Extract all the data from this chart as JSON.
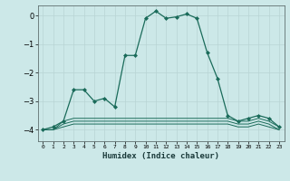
{
  "xlabel": "Humidex (Indice chaleur)",
  "x": [
    0,
    1,
    2,
    3,
    4,
    5,
    6,
    7,
    8,
    9,
    10,
    11,
    12,
    13,
    14,
    15,
    16,
    17,
    18,
    19,
    20,
    21,
    22,
    23
  ],
  "y_main": [
    -4.0,
    -3.9,
    -3.7,
    -2.6,
    -2.6,
    -3.0,
    -2.9,
    -3.2,
    -1.4,
    -1.4,
    -0.1,
    0.15,
    -0.1,
    -0.05,
    0.05,
    -0.1,
    -1.3,
    -2.2,
    -3.5,
    -3.7,
    -3.6,
    -3.5,
    -3.6,
    -3.9
  ],
  "y_flat1": [
    -4.0,
    -4.0,
    -3.7,
    -3.6,
    -3.6,
    -3.6,
    -3.6,
    -3.6,
    -3.6,
    -3.6,
    -3.6,
    -3.6,
    -3.6,
    -3.6,
    -3.6,
    -3.6,
    -3.6,
    -3.6,
    -3.6,
    -3.7,
    -3.7,
    -3.6,
    -3.7,
    -3.9
  ],
  "y_flat2": [
    -4.0,
    -4.0,
    -3.8,
    -3.7,
    -3.7,
    -3.7,
    -3.7,
    -3.7,
    -3.7,
    -3.7,
    -3.7,
    -3.7,
    -3.7,
    -3.7,
    -3.7,
    -3.7,
    -3.7,
    -3.7,
    -3.7,
    -3.8,
    -3.8,
    -3.7,
    -3.8,
    -4.0
  ],
  "y_flat3": [
    -4.0,
    -4.0,
    -3.9,
    -3.8,
    -3.8,
    -3.8,
    -3.8,
    -3.8,
    -3.8,
    -3.8,
    -3.8,
    -3.8,
    -3.8,
    -3.8,
    -3.8,
    -3.8,
    -3.8,
    -3.8,
    -3.8,
    -3.9,
    -3.9,
    -3.8,
    -3.9,
    -4.0
  ],
  "line_color": "#1a6b5a",
  "bg_color": "#cce8e8",
  "grid_color": "#b8d4d4",
  "ylim": [
    -4.4,
    0.35
  ],
  "yticks": [
    0,
    -1,
    -2,
    -3,
    -4
  ],
  "xlim": [
    -0.5,
    23.5
  ]
}
